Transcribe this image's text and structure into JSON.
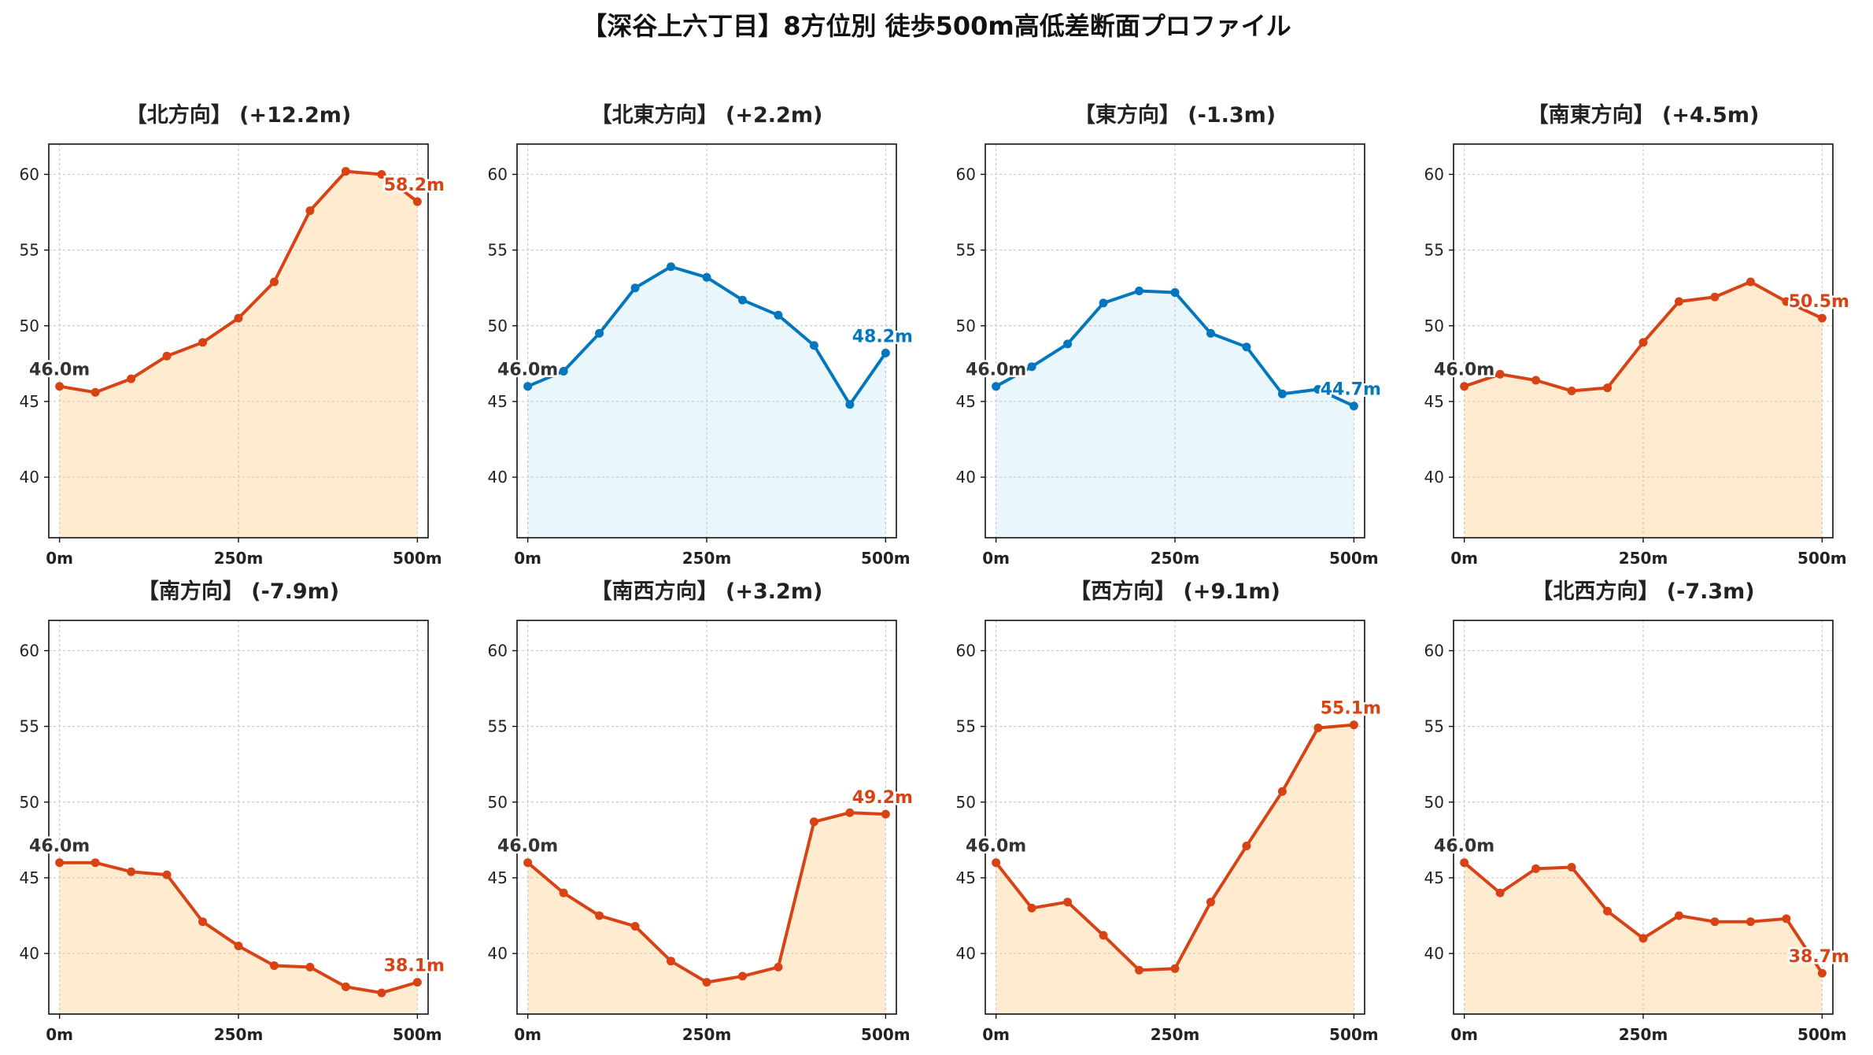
{
  "title": "【深谷上六丁目】8方位別 徒歩500m高低差断面プロファイル",
  "colors": {
    "up_line": "#d84315",
    "up_fill": "#ffecd0",
    "down_line": "#0277bd",
    "down_fill": "#e9f6fc",
    "start_label": "#333333",
    "grid": "#c8c8c8"
  },
  "chart_data": [
    {
      "type": "area",
      "title": "【北方向】 (+12.2m)",
      "theme": "up",
      "x": [
        0,
        50,
        100,
        150,
        200,
        250,
        300,
        350,
        400,
        450,
        500
      ],
      "y": [
        46.0,
        45.6,
        46.5,
        48.0,
        48.9,
        50.5,
        52.9,
        57.6,
        60.2,
        60.0,
        58.2
      ],
      "start_label": "46.0m",
      "end_label": "58.2m",
      "xticks": [
        "0m",
        "250m",
        "500m"
      ],
      "yticks": [
        40,
        45,
        50,
        55,
        60
      ],
      "xlim": [
        -15,
        515
      ],
      "ylim": [
        36,
        62
      ],
      "grid": true
    },
    {
      "type": "area",
      "title": "【北東方向】 (+2.2m)",
      "theme": "down",
      "x": [
        0,
        50,
        100,
        150,
        200,
        250,
        300,
        350,
        400,
        450,
        500
      ],
      "y": [
        46.0,
        47.0,
        49.5,
        52.5,
        53.9,
        53.2,
        51.7,
        50.7,
        48.7,
        44.8,
        48.2
      ],
      "start_label": "46.0m",
      "end_label": "48.2m",
      "xticks": [
        "0m",
        "250m",
        "500m"
      ],
      "yticks": [
        40,
        45,
        50,
        55,
        60
      ],
      "xlim": [
        -15,
        515
      ],
      "ylim": [
        36,
        62
      ],
      "grid": true
    },
    {
      "type": "area",
      "title": "【東方向】 (-1.3m)",
      "theme": "down",
      "x": [
        0,
        50,
        100,
        150,
        200,
        250,
        300,
        350,
        400,
        450,
        500
      ],
      "y": [
        46.0,
        47.3,
        48.8,
        51.5,
        52.3,
        52.2,
        49.5,
        48.6,
        45.5,
        45.8,
        44.7
      ],
      "start_label": "46.0m",
      "end_label": "44.7m",
      "xticks": [
        "0m",
        "250m",
        "500m"
      ],
      "yticks": [
        40,
        45,
        50,
        55,
        60
      ],
      "xlim": [
        -15,
        515
      ],
      "ylim": [
        36,
        62
      ],
      "grid": true
    },
    {
      "type": "area",
      "title": "【南東方向】 (+4.5m)",
      "theme": "up",
      "x": [
        0,
        50,
        100,
        150,
        200,
        250,
        300,
        350,
        400,
        450,
        500
      ],
      "y": [
        46.0,
        46.8,
        46.4,
        45.7,
        45.9,
        48.9,
        51.6,
        51.9,
        52.9,
        51.6,
        50.5
      ],
      "start_label": "46.0m",
      "end_label": "50.5m",
      "xticks": [
        "0m",
        "250m",
        "500m"
      ],
      "yticks": [
        40,
        45,
        50,
        55,
        60
      ],
      "xlim": [
        -15,
        515
      ],
      "ylim": [
        36,
        62
      ],
      "grid": true
    },
    {
      "type": "area",
      "title": "【南方向】 (-7.9m)",
      "theme": "up",
      "x": [
        0,
        50,
        100,
        150,
        200,
        250,
        300,
        350,
        400,
        450,
        500
      ],
      "y": [
        46.0,
        46.0,
        45.4,
        45.2,
        42.1,
        40.5,
        39.2,
        39.1,
        37.8,
        37.4,
        38.1
      ],
      "start_label": "46.0m",
      "end_label": "38.1m",
      "xticks": [
        "0m",
        "250m",
        "500m"
      ],
      "yticks": [
        40,
        45,
        50,
        55,
        60
      ],
      "xlim": [
        -15,
        515
      ],
      "ylim": [
        36,
        62
      ],
      "grid": true
    },
    {
      "type": "area",
      "title": "【南西方向】 (+3.2m)",
      "theme": "up",
      "x": [
        0,
        50,
        100,
        150,
        200,
        250,
        300,
        350,
        400,
        450,
        500
      ],
      "y": [
        46.0,
        44.0,
        42.5,
        41.8,
        39.5,
        38.1,
        38.5,
        39.1,
        48.7,
        49.3,
        49.2
      ],
      "start_label": "46.0m",
      "end_label": "49.2m",
      "xticks": [
        "0m",
        "250m",
        "500m"
      ],
      "yticks": [
        40,
        45,
        50,
        55,
        60
      ],
      "xlim": [
        -15,
        515
      ],
      "ylim": [
        36,
        62
      ],
      "grid": true
    },
    {
      "type": "area",
      "title": "【西方向】 (+9.1m)",
      "theme": "up",
      "x": [
        0,
        50,
        100,
        150,
        200,
        250,
        300,
        350,
        400,
        450,
        500
      ],
      "y": [
        46.0,
        43.0,
        43.4,
        41.2,
        38.9,
        39.0,
        43.4,
        47.1,
        50.7,
        54.9,
        55.1
      ],
      "start_label": "46.0m",
      "end_label": "55.1m",
      "xticks": [
        "0m",
        "250m",
        "500m"
      ],
      "yticks": [
        40,
        45,
        50,
        55,
        60
      ],
      "xlim": [
        -15,
        515
      ],
      "ylim": [
        36,
        62
      ],
      "grid": true
    },
    {
      "type": "area",
      "title": "【北西方向】 (-7.3m)",
      "theme": "up",
      "x": [
        0,
        50,
        100,
        150,
        200,
        250,
        300,
        350,
        400,
        450,
        500
      ],
      "y": [
        46.0,
        44.0,
        45.6,
        45.7,
        42.8,
        41.0,
        42.5,
        42.1,
        42.1,
        42.3,
        38.7
      ],
      "start_label": "46.0m",
      "end_label": "38.7m",
      "xticks": [
        "0m",
        "250m",
        "500m"
      ],
      "yticks": [
        40,
        45,
        50,
        55,
        60
      ],
      "xlim": [
        -15,
        515
      ],
      "ylim": [
        36,
        62
      ],
      "grid": true
    }
  ]
}
